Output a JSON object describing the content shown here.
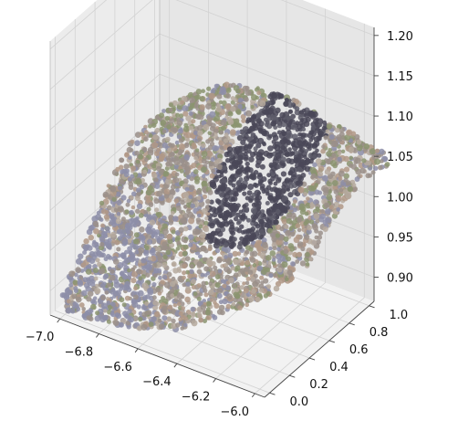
{
  "chart_data": {
    "type": "scatter",
    "projection": "3d",
    "title": "",
    "xlabel": "",
    "ylabel": "",
    "zlabel": "",
    "xlim": [
      -7.05,
      -5.95
    ],
    "ylim": [
      -0.05,
      1.05
    ],
    "zlim": [
      0.87,
      1.21
    ],
    "x_ticks": [
      -7.0,
      -6.8,
      -6.6,
      -6.4,
      -6.2,
      -6.0
    ],
    "x_tick_labels": [
      "−7.0",
      "−6.8",
      "−6.6",
      "−6.4",
      "−6.2",
      "−6.0"
    ],
    "y_ticks": [
      0.0,
      0.2,
      0.4,
      0.6,
      0.8,
      1.0
    ],
    "y_tick_labels": [
      "0.0",
      "0.2",
      "0.4",
      "0.6",
      "0.8",
      "1.0"
    ],
    "z_ticks": [
      0.9,
      0.95,
      1.0,
      1.05,
      1.1,
      1.15,
      1.2
    ],
    "z_tick_labels": [
      "0.90",
      "0.95",
      "1.00",
      "1.05",
      "1.10",
      "1.15",
      "1.20"
    ],
    "grid": true,
    "pane_color": "#f2f2f2",
    "point_colors": {
      "rock_base": "#9a8f8a",
      "rock_light": "#b5a99e",
      "rock_tan": "#b09886",
      "moss_green": "#8b9470",
      "blue_grey": "#8d8ea8",
      "shadow_dark": "#4a4858",
      "shadow_mid": "#5c5a68"
    },
    "regions": [
      {
        "name": "main surface",
        "color": "rock_base"
      },
      {
        "name": "dark strip",
        "color": "shadow_dark"
      }
    ]
  }
}
